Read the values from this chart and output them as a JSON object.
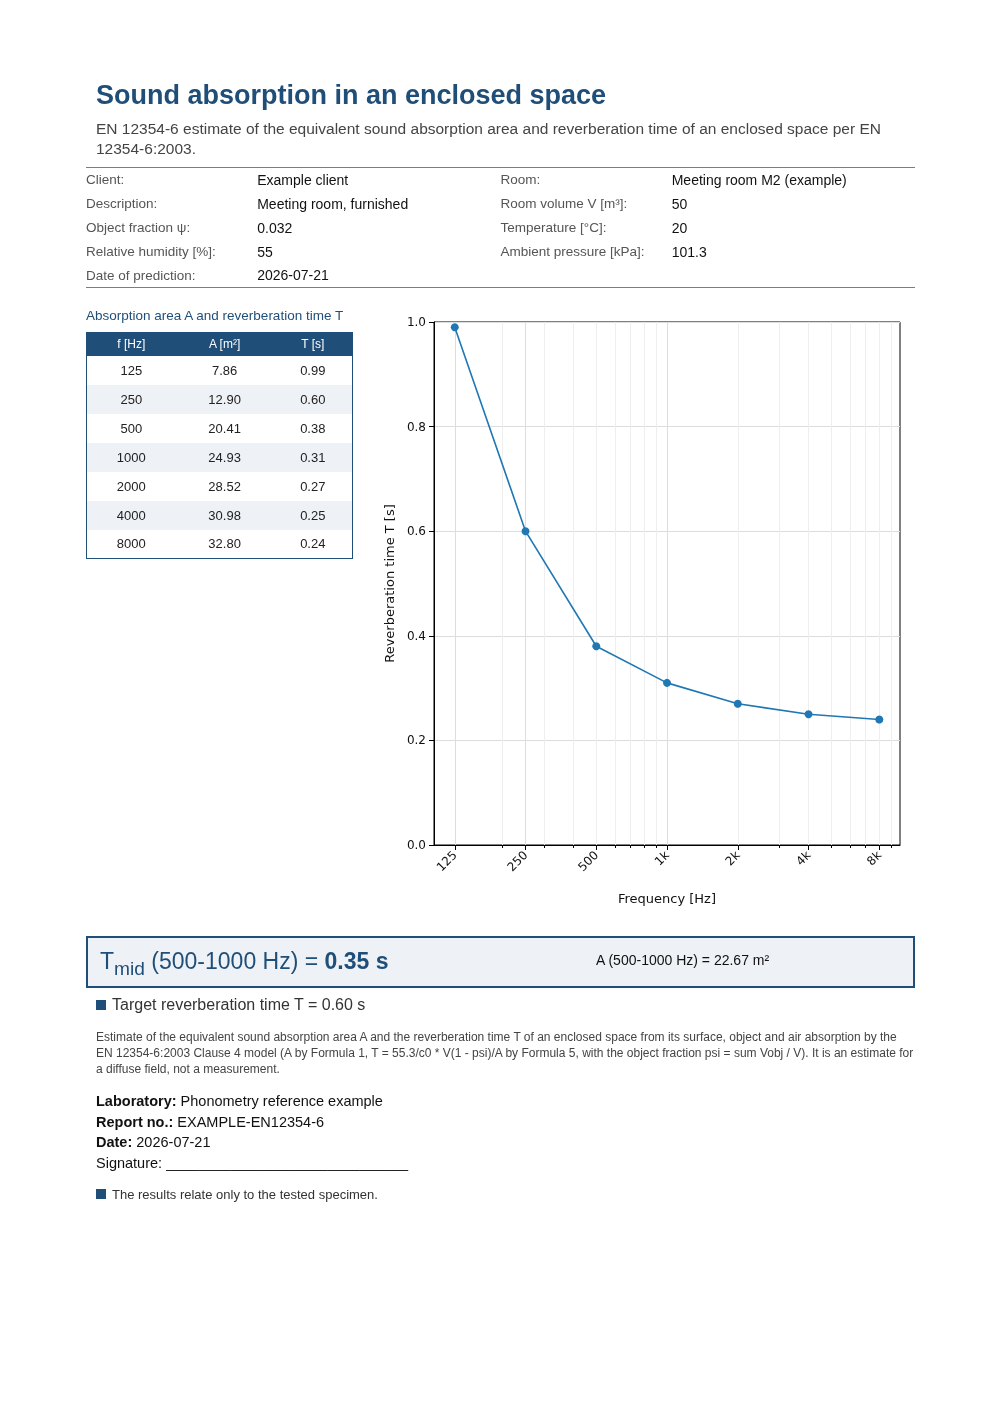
{
  "chart_data": [
    {
      "type": "other",
      "title": "Sound absorption in an enclosed space",
      "subtitle": "EN 12354-6 estimate of the equivalent sound absorption area and reverberation time of an enclosed space per EN 12354-6:2003.",
      "annotations": [
        "Client:",
        "Example client",
        "Room:",
        "Meeting room M2 (example)",
        "Description:",
        "Meeting room, furnished",
        "Room volume V [m³]:",
        "50",
        "Object fraction ψ:",
        "0.032",
        "Temperature [°C]:",
        "20",
        "Relative humidity [%]:",
        "55",
        "Ambient pressure [kPa]:",
        "101.3",
        "Date of prediction:",
        "2026-07-21"
      ]
    },
    {
      "type": "other",
      "title": "Absorption area A and reverberation time T",
      "categories": [
        "f [Hz]",
        "A [m²]",
        "T [s]"
      ],
      "annotations": [
        "125",
        "7.86",
        "0.99",
        "250",
        "12.90",
        "0.60",
        "500",
        "20.41",
        "0.38",
        "1000",
        "24.93",
        "0.31",
        "2000",
        "28.52",
        "0.27",
        "4000",
        "30.98",
        "0.25",
        "8000",
        "32.80",
        "0.24"
      ]
    },
    {
      "type": "line",
      "xlabel": "Frequency [Hz]",
      "ylabel": "Reverberation time T [s]",
      "log": "x",
      "x": [
        125,
        250,
        500,
        1000,
        2000,
        4000,
        8000
      ],
      "series": [
        {
          "color": "#1f77b4",
          "values": [
            0.99,
            0.6,
            0.38,
            0.31,
            0.27,
            0.25,
            0.24
          ]
        }
      ],
      "xlim": [
        102,
        9800
      ],
      "xticks": [
        {
          "value": 125,
          "label": "125"
        },
        {
          "value": 250,
          "label": "250"
        },
        {
          "value": 500,
          "label": "500"
        },
        {
          "value": 1000,
          "label": "1k"
        },
        {
          "value": 2000,
          "label": "2k"
        },
        {
          "value": 4000,
          "label": "4k"
        },
        {
          "value": 8000,
          "label": "8k"
        }
      ],
      "ylim": [
        0,
        1.0
      ],
      "yticks": [
        {
          "value": 0,
          "label": "0.0"
        },
        {
          "value": 0.2,
          "label": "0.2"
        },
        {
          "value": 0.4,
          "label": "0.4"
        },
        {
          "value": 0.6,
          "label": "0.6"
        },
        {
          "value": 0.8,
          "label": "0.8"
        },
        {
          "value": 1.0,
          "label": "1.0"
        }
      ],
      "grid": true,
      "marker": "circle",
      "line_style": "solid"
    },
    {
      "type": "other",
      "annotations": [
        "T$_{mid}$ (500-1000 Hz) = ",
        "0.35 s",
        "A (500-1000 Hz) = 22.67 m²",
        "Target reverberation time T = 0.60 s",
        "Estimate of the equivalent sound absorption area A and the reverberation time T of an enclosed space from its surface, object and air absorption by the EN 12354-6:2003 Clause 4 model (A by Formula 1, T = 55.3/c0 * V(1 - psi)/A by Formula 5, with the object fraction psi = sum Vobj / V). It is an estimate for a diffuse field, not a measurement.",
        "Laboratory:",
        " Phonometry reference example",
        "Report no.:",
        " EXAMPLE-EN12354-6",
        "Date:",
        " 2026-07-21",
        "Signature: ______________________________",
        "The results relate only to the tested specimen."
      ]
    }
  ]
}
